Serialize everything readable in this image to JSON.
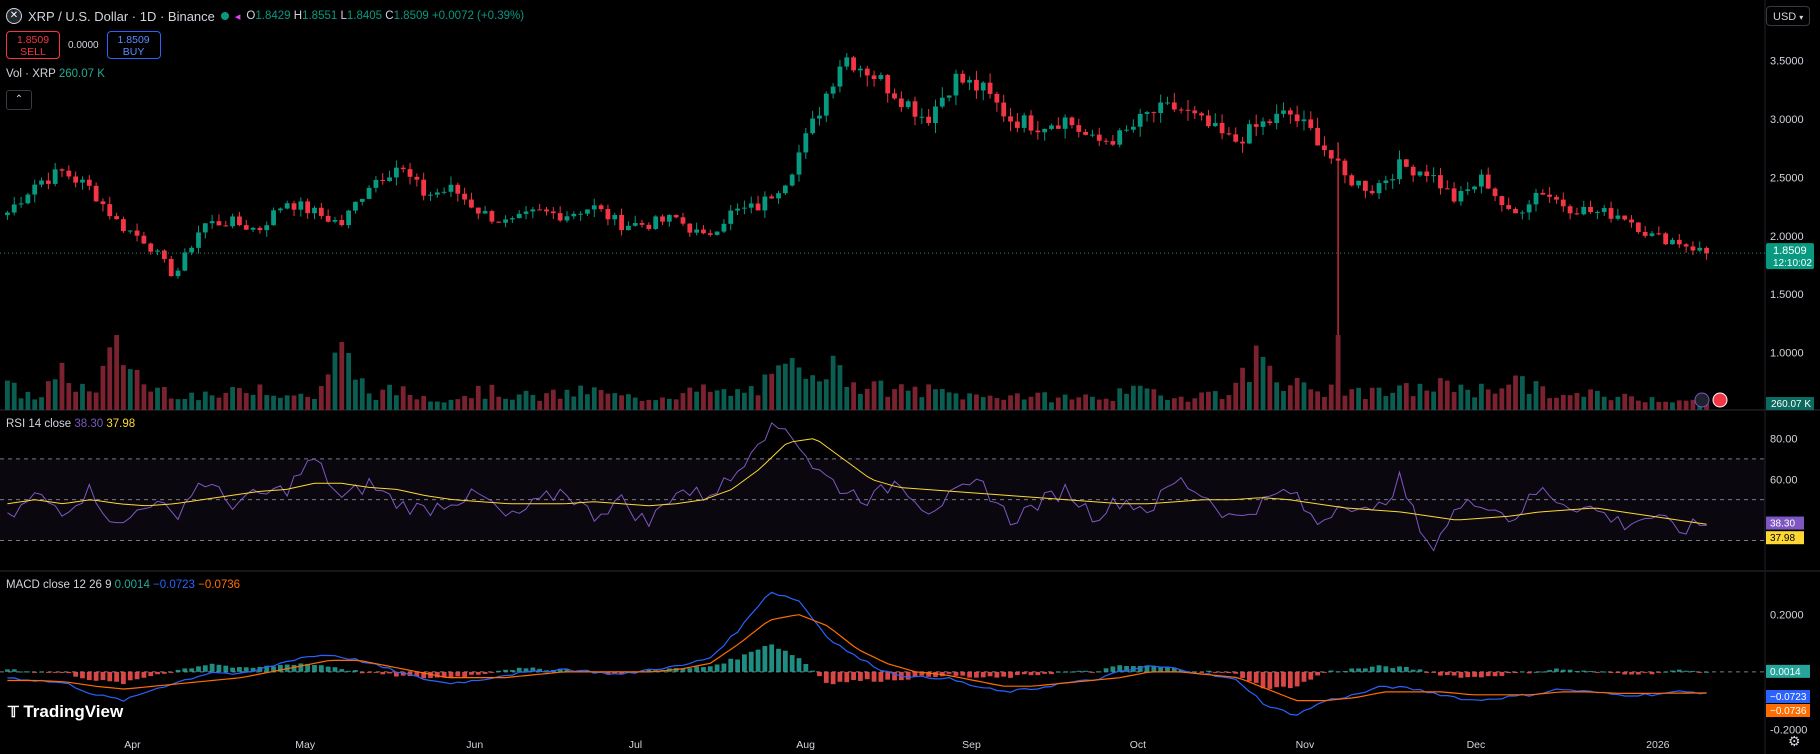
{
  "header": {
    "symbol_logo": "✕",
    "title": "XRP / U.S. Dollar · 1D · Binance",
    "ohlc": {
      "o_label": "O",
      "o": "1.8429",
      "h_label": "H",
      "h": "1.8551",
      "l_label": "L",
      "l": "1.8405",
      "c_label": "C",
      "c": "1.8509",
      "change": "+0.0072 (+0.39%)"
    }
  },
  "trade": {
    "sell_price": "1.8509",
    "sell_label": "SELL",
    "spread": "0.0000",
    "buy_price": "1.8509",
    "buy_label": "BUY"
  },
  "volume_legend": {
    "label": "Vol · XRP",
    "value": "260.07 K"
  },
  "rsi_legend": {
    "label": "RSI 14 close",
    "rsi": "38.30",
    "ma": "37.98"
  },
  "macd_legend": {
    "label": "MACD close 12 26 9",
    "hist": "0.0014",
    "macd": "−0.0723",
    "signal": "−0.0736"
  },
  "currency_select": "USD",
  "branding": "TradingView",
  "colors": {
    "up": "#089981",
    "down": "#f23645",
    "rsi": "#7e57c2",
    "rsi_ma": "#fdd835",
    "macd": "#2962ff",
    "signal": "#ff6d00"
  },
  "chart_data": [
    {
      "type": "candlestick",
      "title": "XRP / U.S. Dollar · 1D · Binance",
      "x_labels": [
        "Apr",
        "May",
        "Jun",
        "Jul",
        "Aug",
        "Sep",
        "Oct",
        "Nov",
        "Dec",
        "2026"
      ],
      "y_ticks": [
        "3.5000",
        "3.0000",
        "2.5000",
        "2.0000",
        "1.5000",
        "1.0000"
      ],
      "ylim": [
        0.55,
        3.72
      ],
      "last_price": "1.8509",
      "countdown": "12:10:02",
      "anchors_close": [
        2.2,
        2.45,
        2.55,
        2.4,
        2.1,
        1.95,
        1.65,
        2.1,
        2.12,
        2.05,
        2.3,
        2.2,
        2.1,
        2.45,
        2.6,
        2.35,
        2.4,
        2.2,
        2.1,
        2.2,
        2.18,
        2.25,
        2.1,
        2.1,
        2.15,
        1.98,
        2.2,
        2.25,
        2.5,
        3.0,
        3.55,
        3.4,
        3.2,
        3.0,
        3.35,
        3.25,
        3.0,
        2.95,
        3.0,
        2.8,
        2.85,
        3.05,
        3.1,
        2.95,
        2.8,
        2.95,
        3.05,
        2.85,
        2.5,
        2.4,
        2.6,
        2.55,
        2.3,
        2.5,
        2.15,
        2.4,
        2.25,
        2.2,
        2.18,
        2.0,
        1.95,
        1.85
      ]
    },
    {
      "type": "bar",
      "title": "Vol · XRP",
      "last_value": "260.07 K",
      "anchors_volume": [
        0.35,
        0.2,
        0.55,
        0.25,
        1.0,
        0.35,
        0.3,
        0.2,
        0.25,
        0.4,
        0.25,
        0.2,
        0.9,
        0.25,
        0.3,
        0.2,
        0.2,
        0.3,
        0.25,
        0.2,
        0.25,
        0.3,
        0.2,
        0.2,
        0.25,
        0.3,
        0.25,
        0.35,
        0.6,
        0.8,
        0.55,
        0.35,
        0.3,
        0.3,
        0.25,
        0.2,
        0.25,
        0.2,
        0.2,
        0.2,
        0.25,
        0.3,
        0.2,
        0.25,
        0.3,
        0.9,
        0.4,
        0.3,
        0.35,
        0.25,
        0.3,
        0.35,
        0.4,
        0.3,
        0.5,
        0.3,
        0.2,
        0.25,
        0.2,
        0.2,
        0.15,
        0.1
      ]
    },
    {
      "type": "line",
      "title": "RSI 14 close",
      "y_ticks": [
        "80.00",
        "60.00"
      ],
      "ylim": [
        18,
        90
      ],
      "bands": [
        70,
        50,
        30
      ],
      "anchors_rsi": [
        40,
        52,
        45,
        55,
        35,
        50,
        42,
        60,
        48,
        52,
        55,
        70,
        50,
        58,
        48,
        45,
        50,
        52,
        40,
        48,
        55,
        42,
        50,
        38,
        55,
        52,
        60,
        82,
        86,
        65,
        55,
        50,
        60,
        45,
        52,
        58,
        40,
        48,
        55,
        42,
        50,
        45,
        60,
        52,
        40,
        48,
        55,
        38,
        50,
        42,
        60,
        25,
        45,
        50,
        40,
        55,
        48,
        45,
        38,
        42,
        35,
        38.3
      ],
      "anchors_ma": [
        48,
        50,
        48,
        50,
        48,
        47,
        48,
        50,
        52,
        54,
        55,
        58,
        58,
        56,
        55,
        52,
        50,
        49,
        48,
        48,
        48,
        49,
        48,
        47,
        48,
        50,
        55,
        65,
        78,
        80,
        70,
        60,
        56,
        55,
        54,
        53,
        52,
        51,
        50,
        49,
        48,
        48,
        49,
        50,
        50,
        51,
        50,
        48,
        46,
        45,
        44,
        42,
        40,
        41,
        42,
        44,
        45,
        46,
        44,
        42,
        40,
        37.98
      ]
    },
    {
      "type": "line",
      "title": "MACD close 12 26 9",
      "y_ticks": [
        "0.2000",
        "-0.2000"
      ],
      "ylim": [
        -0.22,
        0.32
      ],
      "anchors_macd": [
        -0.02,
        -0.03,
        -0.04,
        -0.08,
        -0.1,
        -0.06,
        -0.03,
        0.0,
        -0.01,
        0.02,
        0.05,
        0.06,
        0.04,
        0.01,
        -0.02,
        -0.04,
        -0.03,
        -0.01,
        0.0,
        0.01,
        0.0,
        -0.01,
        0.01,
        0.02,
        0.05,
        0.15,
        0.28,
        0.25,
        0.12,
        0.05,
        0.0,
        -0.02,
        -0.02,
        -0.05,
        -0.07,
        -0.06,
        -0.04,
        -0.03,
        0.0,
        0.02,
        0.01,
        -0.01,
        -0.03,
        -0.12,
        -0.15,
        -0.1,
        -0.08,
        -0.05,
        -0.06,
        -0.08,
        -0.1,
        -0.09,
        -0.08,
        -0.06,
        -0.07,
        -0.08,
        -0.08,
        -0.07,
        -0.0723
      ],
      "anchors_signal": [
        -0.03,
        -0.03,
        -0.035,
        -0.05,
        -0.06,
        -0.05,
        -0.04,
        -0.03,
        -0.02,
        0.0,
        0.02,
        0.04,
        0.04,
        0.02,
        0.0,
        -0.02,
        -0.02,
        -0.02,
        -0.01,
        0.0,
        0.0,
        0.0,
        0.0,
        0.01,
        0.03,
        0.1,
        0.18,
        0.2,
        0.16,
        0.08,
        0.03,
        0.0,
        -0.01,
        -0.03,
        -0.05,
        -0.05,
        -0.04,
        -0.03,
        -0.02,
        0.0,
        0.0,
        -0.01,
        -0.02,
        -0.06,
        -0.1,
        -0.1,
        -0.09,
        -0.07,
        -0.07,
        -0.07,
        -0.08,
        -0.08,
        -0.08,
        -0.07,
        -0.07,
        -0.075,
        -0.075,
        -0.074,
        -0.0736
      ],
      "hist_last": "0.0014",
      "macd_last": "-0.0723",
      "signal_last": "-0.0736"
    }
  ]
}
